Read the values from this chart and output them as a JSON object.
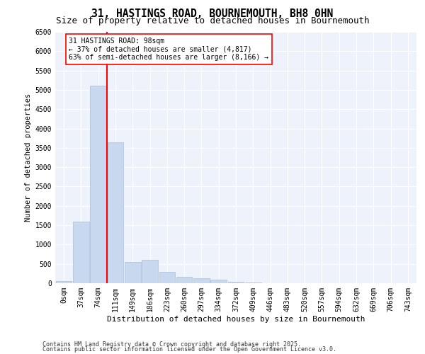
{
  "title1": "31, HASTINGS ROAD, BOURNEMOUTH, BH8 0HN",
  "title2": "Size of property relative to detached houses in Bournemouth",
  "xlabel": "Distribution of detached houses by size in Bournemouth",
  "ylabel": "Number of detached properties",
  "bar_labels": [
    "0sqm",
    "37sqm",
    "74sqm",
    "111sqm",
    "149sqm",
    "186sqm",
    "223sqm",
    "260sqm",
    "297sqm",
    "334sqm",
    "372sqm",
    "409sqm",
    "446sqm",
    "483sqm",
    "520sqm",
    "557sqm",
    "594sqm",
    "632sqm",
    "669sqm",
    "706sqm",
    "743sqm"
  ],
  "bar_values": [
    60,
    1600,
    5100,
    3650,
    550,
    600,
    300,
    170,
    130,
    90,
    40,
    10,
    5,
    2,
    1,
    0,
    0,
    0,
    0,
    0,
    0
  ],
  "bar_color": "#c8d8ee",
  "bar_edge_color": "#a8bcd8",
  "vline_x_index": 2.5,
  "vline_color": "red",
  "annotation_text": "31 HASTINGS ROAD: 98sqm\n← 37% of detached houses are smaller (4,817)\n63% of semi-detached houses are larger (8,166) →",
  "annotation_box_color": "white",
  "annotation_box_edge": "red",
  "ylim": [
    0,
    6500
  ],
  "yticks": [
    0,
    500,
    1000,
    1500,
    2000,
    2500,
    3000,
    3500,
    4000,
    4500,
    5000,
    5500,
    6000,
    6500
  ],
  "footer1": "Contains HM Land Registry data © Crown copyright and database right 2025.",
  "footer2": "Contains public sector information licensed under the Open Government Licence v3.0.",
  "bg_color": "#eef2fa",
  "grid_color": "#ffffff",
  "title_fontsize": 10.5,
  "subtitle_fontsize": 9,
  "axis_label_fontsize": 8,
  "tick_fontsize": 7,
  "annotation_fontsize": 7,
  "footer_fontsize": 6,
  "ylabel_fontsize": 7.5
}
